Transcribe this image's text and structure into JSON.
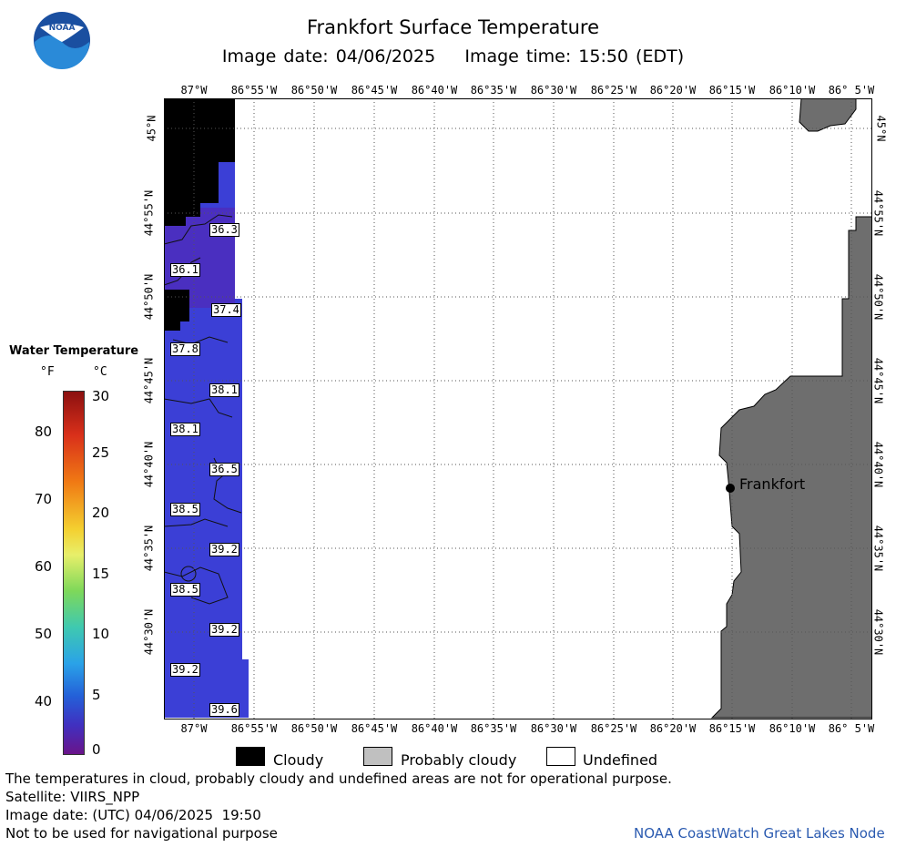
{
  "header": {
    "title": "Frankfort Surface Temperature",
    "subtitle": "Image date: 04/06/2025    Image time: 15:50 (EDT)"
  },
  "logo": {
    "text": "NOAA"
  },
  "axes": {
    "longitude_labels": [
      "87°W",
      "86°55'W",
      "86°50'W",
      "86°45'W",
      "86°40'W",
      "86°35'W",
      "86°30'W",
      "86°25'W",
      "86°20'W",
      "86°15'W",
      "86°10'W",
      "86° 5'W"
    ],
    "latitude_labels": [
      "45°N",
      "44°55'N",
      "44°50'N",
      "44°45'N",
      "44°40'N",
      "44°35'N",
      "44°30'N"
    ]
  },
  "map": {
    "place_label": "Frankfort",
    "temperature_labels": [
      "36.3",
      "36.1",
      "37.4",
      "37.8",
      "38.1",
      "38.1",
      "36.5",
      "38.5",
      "39.2",
      "38.5",
      "39.2",
      "39.2",
      "39.6"
    ],
    "colors": {
      "water": "#3b3fd6",
      "water_dark": "#4a2fc0",
      "cloud": "#000000",
      "land": "#6e6e6e",
      "undefined": "#ffffff"
    }
  },
  "legend": {
    "title": "Water Temperature",
    "unit_f": "°F",
    "unit_c": "°C",
    "f_ticks": [
      "80",
      "70",
      "60",
      "50",
      "40"
    ],
    "c_ticks": [
      "30",
      "25",
      "20",
      "15",
      "10",
      "5",
      "0"
    ]
  },
  "key": {
    "cloudy": "Cloudy",
    "probably_cloudy": "Probably cloudy",
    "undefined": "Undefined"
  },
  "footer": {
    "note": "The temperatures in cloud, probably cloudy and undefined areas are not for operational purpose.",
    "satellite": "Satellite: VIIRS_NPP",
    "image_date_utc": "Image date: (UTC) 04/06/2025  19:50",
    "nav_warning": "Not to be used for navigational purpose",
    "credit": "NOAA CoastWatch Great Lakes Node"
  }
}
